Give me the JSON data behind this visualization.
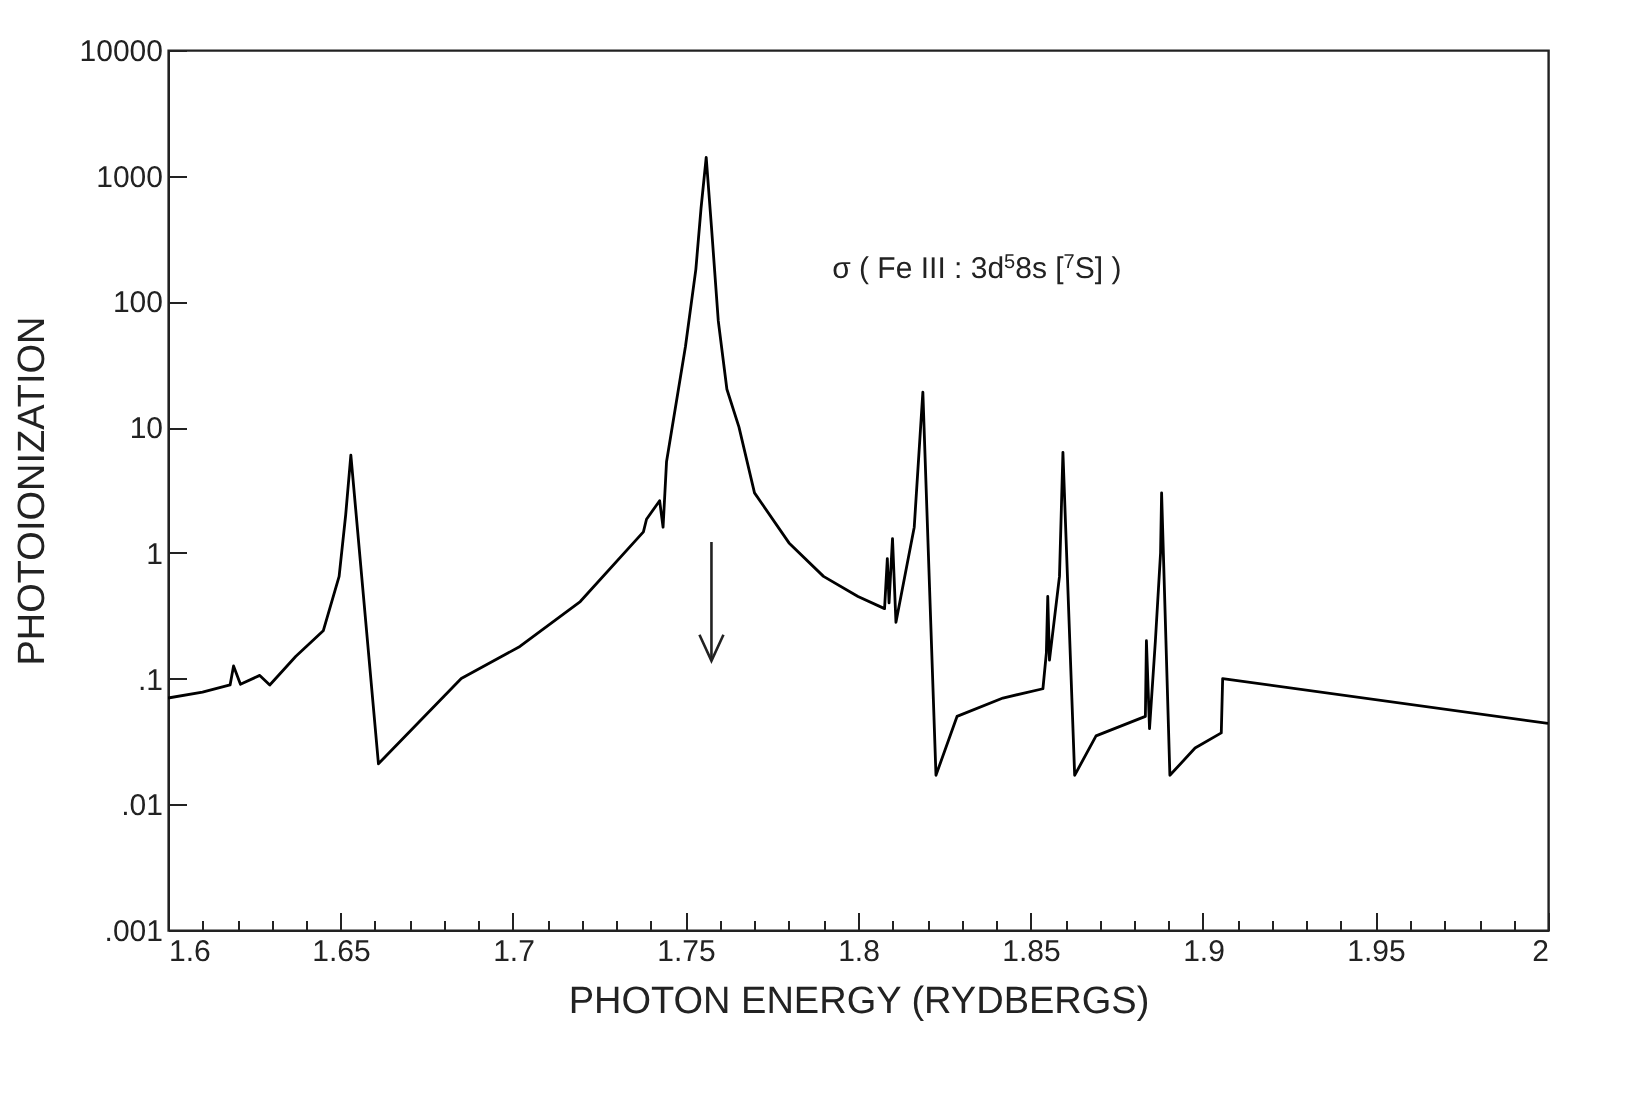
{
  "chart_data": {
    "type": "line",
    "xlabel": "PHOTON ENERGY (RYDBERGS)",
    "ylabel": "PHOTOIONIZATION",
    "log": "y",
    "marker": "none",
    "line_style": "solid",
    "annotations": [
      "σ ( Fe III : 3d$^{5}$8s [$^{7}$S] )"
    ],
    "xlim": [
      1.6,
      2.0
    ],
    "xticks": [
      1.6,
      {
        "value": 1.61,
        "label": null
      },
      {
        "value": 1.62,
        "label": null
      },
      {
        "value": 1.63,
        "label": null
      },
      {
        "value": 1.64,
        "label": null
      },
      1.65,
      {
        "value": 1.66,
        "label": null
      },
      {
        "value": 1.67,
        "label": null
      },
      {
        "value": 1.68,
        "label": null
      },
      {
        "value": 1.69,
        "label": null
      },
      1.7,
      {
        "value": 1.71,
        "label": null
      },
      {
        "value": 1.72,
        "label": null
      },
      {
        "value": 1.73,
        "label": null
      },
      {
        "value": 1.74,
        "label": null
      },
      1.75,
      {
        "value": 1.76,
        "label": null
      },
      {
        "value": 1.77,
        "label": null
      },
      {
        "value": 1.78,
        "label": null
      },
      {
        "value": 1.79,
        "label": null
      },
      1.8,
      {
        "value": 1.81,
        "label": null
      },
      {
        "value": 1.82,
        "label": null
      },
      {
        "value": 1.83,
        "label": null
      },
      {
        "value": 1.84,
        "label": null
      },
      1.85,
      {
        "value": 1.86,
        "label": null
      },
      {
        "value": 1.87,
        "label": null
      },
      {
        "value": 1.88,
        "label": null
      },
      {
        "value": 1.89,
        "label": null
      },
      1.9,
      {
        "value": 1.91,
        "label": null
      },
      {
        "value": 1.92,
        "label": null
      },
      {
        "value": 1.93,
        "label": null
      },
      {
        "value": 1.94,
        "label": null
      },
      1.95,
      {
        "value": 1.96,
        "label": null
      },
      {
        "value": 1.97,
        "label": null
      },
      {
        "value": 1.98,
        "label": null
      },
      {
        "value": 1.99,
        "label": null
      },
      2
    ],
    "ylim": [
      0.001,
      10000
    ],
    "yticks": [
      {
        "value": 0.001,
        "label": ".001"
      },
      {
        "value": 0.01,
        "label": ".01"
      },
      {
        "value": 0.1,
        "label": ".1"
      },
      1,
      10,
      100,
      1000,
      10000
    ],
    "x": [
      1.6,
      1.61,
      1.618,
      1.619,
      1.621,
      1.6266,
      1.6295,
      1.637,
      1.645,
      1.6496,
      1.6515,
      1.653,
      1.661,
      1.685,
      1.702,
      1.7195,
      1.7378,
      1.7387,
      1.7425,
      1.7435,
      1.7445,
      1.75,
      1.753,
      1.7545,
      1.756,
      1.7575,
      1.7595,
      1.762,
      1.7655,
      1.77,
      1.78,
      1.79,
      1.8,
      1.8077,
      1.8085,
      1.809,
      1.81,
      1.811,
      1.8163,
      1.8188,
      1.8226,
      1.8287,
      1.842,
      1.8536,
      1.8546,
      1.855,
      1.8555,
      1.8584,
      1.8594,
      1.8628,
      1.869,
      1.8833,
      1.8836,
      1.8845,
      1.8862,
      1.8877,
      1.888,
      1.8904,
      1.8977,
      1.9053,
      1.9057,
      2.0
    ],
    "series": [
      {
        "color": "#000000",
        "values": [
          0.07,
          0.078,
          0.089,
          0.126,
          0.09,
          0.106,
          0.089,
          0.15,
          0.24,
          0.65,
          2,
          6,
          0.021,
          0.1,
          0.18,
          0.41,
          1.47,
          1.85,
          2.6,
          1.6,
          5.3,
          44,
          180,
          550,
          1400,
          400,
          70,
          20,
          10,
          3,
          1.2,
          0.65,
          0.45,
          0.36,
          0.9,
          0.4,
          1.3,
          0.28,
          1.6,
          19,
          0.017,
          0.05,
          0.07,
          0.083,
          0.16,
          0.45,
          0.14,
          0.65,
          6.3,
          0.017,
          0.035,
          0.05,
          0.2,
          0.04,
          0.2,
          1,
          3,
          0.017,
          0.028,
          0.037,
          0.1,
          0.044
        ]
      }
    ]
  }
}
